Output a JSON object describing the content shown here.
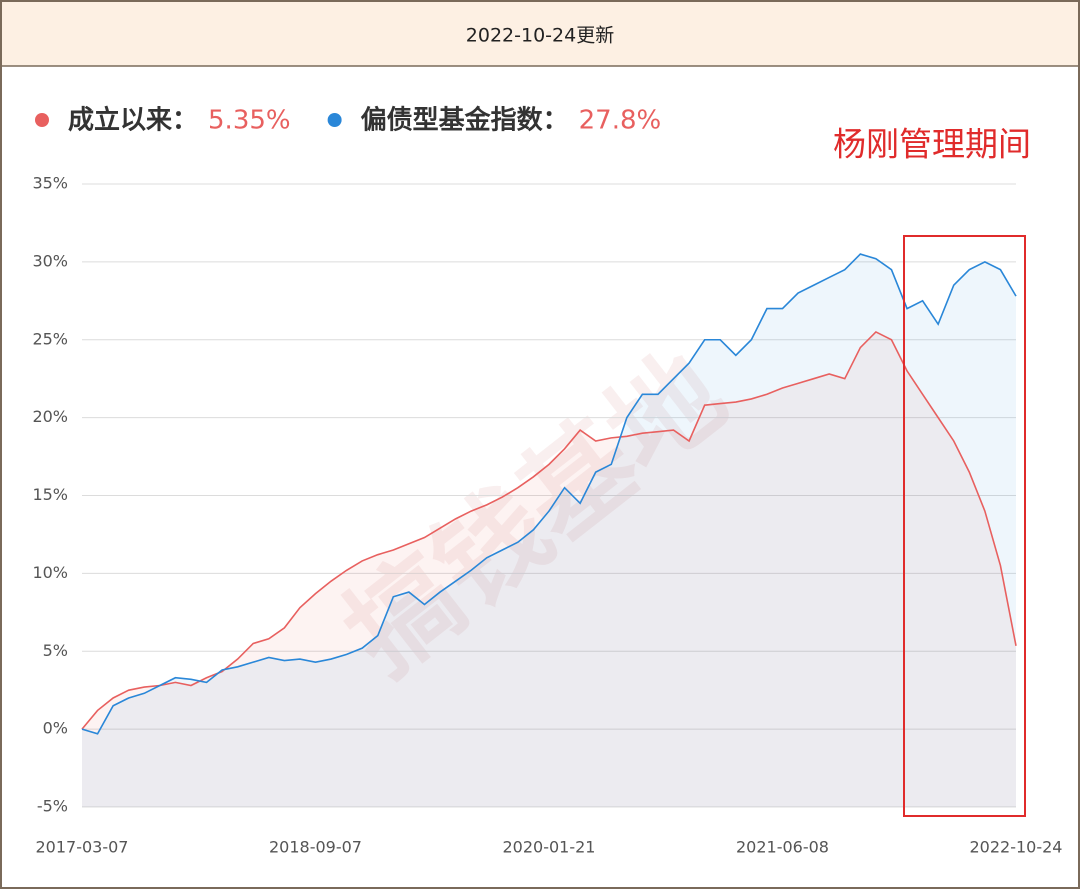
{
  "header": "2022-10-24更新",
  "chart_data": {
    "type": "line",
    "annotation": "杨刚管理期间",
    "watermark": "搞钱基地",
    "categories": [
      "2017-03-07",
      null,
      null,
      null,
      null,
      null,
      null,
      null,
      null,
      null,
      null,
      null,
      null,
      null,
      null,
      "2018-09-07",
      null,
      null,
      null,
      null,
      null,
      null,
      null,
      null,
      null,
      null,
      null,
      null,
      null,
      null,
      "2020-01-21",
      null,
      null,
      null,
      null,
      null,
      null,
      null,
      null,
      null,
      null,
      null,
      null,
      null,
      null,
      "2021-06-08",
      null,
      null,
      null,
      null,
      null,
      null,
      null,
      null,
      null,
      null,
      null,
      null,
      null,
      null,
      "2022-10-24"
    ],
    "series": [
      {
        "name": "成立以来：",
        "color": "#e8605f",
        "value_label": "5.35%",
        "values": [
          0,
          1.2,
          2.0,
          2.5,
          2.7,
          2.8,
          3.0,
          2.8,
          3.3,
          3.7,
          4.5,
          5.5,
          5.8,
          6.5,
          7.8,
          8.7,
          9.5,
          10.2,
          10.8,
          11.2,
          11.5,
          11.9,
          12.3,
          12.9,
          13.5,
          14.0,
          14.4,
          14.9,
          15.5,
          16.2,
          17.0,
          18.0,
          19.2,
          18.5,
          18.7,
          18.8,
          19.0,
          19.1,
          19.2,
          18.5,
          20.8,
          20.9,
          21.0,
          21.2,
          21.5,
          21.9,
          22.2,
          22.5,
          22.8,
          22.5,
          24.5,
          25.5,
          25.0,
          23.0,
          21.5,
          20.0,
          18.5,
          16.5,
          14.0,
          10.5,
          5.35
        ]
      },
      {
        "name": "偏债型基金指数：",
        "color": "#2a87d8",
        "value_label": "27.8%",
        "values": [
          0,
          -0.3,
          1.5,
          2.0,
          2.3,
          2.8,
          3.3,
          3.2,
          3.0,
          3.8,
          4.0,
          4.3,
          4.6,
          4.4,
          4.5,
          4.3,
          4.5,
          4.8,
          5.2,
          6.0,
          8.5,
          8.8,
          8.0,
          8.8,
          9.5,
          10.2,
          11.0,
          11.5,
          12.0,
          12.8,
          14.0,
          15.5,
          14.5,
          16.5,
          17.0,
          20.0,
          21.5,
          21.5,
          22.5,
          23.5,
          25.0,
          25.0,
          24.0,
          25.0,
          27.0,
          27.0,
          28.0,
          28.5,
          29.0,
          29.5,
          30.5,
          30.2,
          29.5,
          27.0,
          27.5,
          26.0,
          28.5,
          29.5,
          30.0,
          29.5,
          27.8
        ]
      }
    ],
    "ylim": [
      -5,
      35
    ],
    "yticks": [
      {
        "value": -5,
        "label": "-5%"
      },
      {
        "value": 0,
        "label": "0%"
      },
      {
        "value": 5,
        "label": "5%"
      },
      {
        "value": 10,
        "label": "10%"
      },
      {
        "value": 15,
        "label": "15%"
      },
      {
        "value": 20,
        "label": "20%"
      },
      {
        "value": 25,
        "label": "25%"
      },
      {
        "value": 30,
        "label": "30%"
      },
      {
        "value": 35,
        "label": "35%"
      }
    ],
    "grid": true
  }
}
